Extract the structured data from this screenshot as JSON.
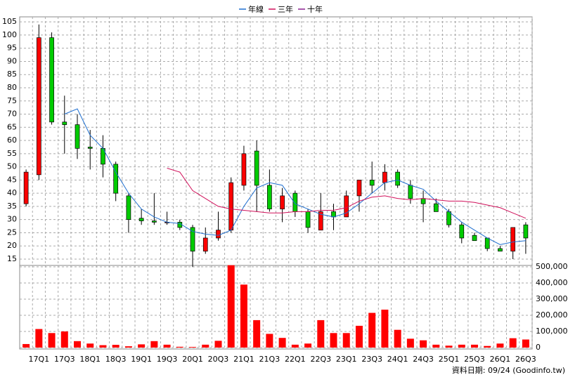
{
  "chart_data": {
    "type": "candlestick",
    "categories": [
      null,
      "17Q1",
      null,
      "17Q3",
      null,
      "18Q1",
      null,
      "18Q3",
      null,
      "19Q1",
      null,
      "19Q3",
      null,
      "20Q1",
      null,
      "20Q3",
      null,
      "21Q1",
      null,
      "21Q3",
      null,
      "22Q1",
      null,
      "22Q3",
      null,
      "23Q1",
      null,
      "23Q3",
      null,
      "24Q1",
      null,
      "24Q3",
      null,
      "25Q1",
      null,
      "25Q3",
      null,
      "26Q1",
      null,
      "26Q3"
    ],
    "open": [
      36,
      47,
      99,
      67,
      66,
      57.5,
      57,
      51,
      39,
      30.5,
      29.5,
      29,
      29,
      27,
      18,
      23,
      26,
      43,
      56,
      43,
      34,
      40,
      33,
      26,
      33,
      31,
      39,
      45,
      44,
      48,
      43,
      38,
      36,
      33,
      28,
      24,
      23,
      19,
      18,
      28
    ],
    "high": [
      49,
      104,
      101,
      77,
      70,
      64,
      62,
      52,
      40,
      34,
      40,
      33,
      30,
      28,
      27,
      33,
      46,
      58,
      60,
      49,
      42,
      41,
      34,
      40,
      36,
      41,
      45,
      52,
      51,
      49,
      45,
      41,
      38,
      34,
      29,
      25,
      23,
      20,
      27,
      29
    ],
    "low": [
      35,
      45,
      66,
      55,
      53,
      49,
      46,
      37,
      25,
      28,
      28,
      28,
      26,
      12,
      17,
      22,
      25,
      41,
      33,
      33,
      29,
      31,
      25,
      26,
      26,
      31,
      33,
      40,
      41,
      42,
      36,
      29,
      33,
      27,
      21,
      22,
      18,
      18,
      15,
      17
    ],
    "close": [
      48,
      99,
      67,
      66,
      57,
      57,
      51,
      40,
      30,
      29.5,
      29,
      29,
      27,
      18,
      23,
      26,
      44,
      55,
      43,
      34,
      39,
      33,
      27,
      33,
      31,
      39,
      45,
      43,
      48,
      43,
      38,
      36,
      33,
      28,
      23,
      22,
      19,
      18,
      27,
      23
    ],
    "up_color": "#ff0000",
    "down_color": "#00cc00",
    "series": [
      {
        "name": "年線",
        "color": "#1f6fd0",
        "values": [
          null,
          null,
          null,
          70,
          72,
          62,
          57,
          48,
          40,
          34,
          31,
          29,
          28.5,
          25.5,
          24.5,
          24,
          26,
          35,
          42,
          44,
          43,
          36,
          34,
          32,
          31,
          32.5,
          36,
          40,
          44,
          45,
          43,
          41.5,
          37,
          33,
          29,
          26,
          23,
          20.5,
          21.5,
          22
        ]
      },
      {
        "name": "三年",
        "color": "#d0105a",
        "values": [
          null,
          null,
          null,
          null,
          null,
          null,
          null,
          null,
          null,
          null,
          null,
          49.5,
          48,
          41,
          38,
          35,
          34,
          33.5,
          33,
          32.5,
          32.5,
          33,
          33,
          33.5,
          33.5,
          34.5,
          37,
          38.5,
          39,
          38,
          37.5,
          38,
          37.5,
          37,
          37,
          36.5,
          35.5,
          34.5,
          32.5,
          30.5
        ]
      },
      {
        "name": "十年",
        "color": "#8a2090",
        "values": [
          null,
          null,
          null,
          null,
          null,
          null,
          null,
          null,
          null,
          null,
          null,
          null,
          null,
          null,
          null,
          null,
          null,
          null,
          null,
          null,
          null,
          null,
          null,
          null,
          null,
          null,
          null,
          null,
          null,
          null,
          null,
          null,
          null,
          null,
          null,
          null,
          null,
          null,
          null,
          null
        ]
      }
    ],
    "ylim": [
      12.6,
      106.9
    ],
    "yticks": [
      15,
      20,
      25,
      30,
      35,
      40,
      45,
      50,
      55,
      60,
      65,
      70,
      75,
      80,
      85,
      90,
      95,
      100,
      105
    ],
    "volume": {
      "color": "#ff0000",
      "values": [
        22000,
        115000,
        90000,
        100000,
        40000,
        25000,
        15000,
        17000,
        8000,
        20000,
        40000,
        18000,
        5000,
        4000,
        18000,
        42000,
        510000,
        390000,
        170000,
        85000,
        60000,
        18000,
        25000,
        170000,
        90000,
        90000,
        135000,
        215000,
        235000,
        110000,
        55000,
        45000,
        18000,
        12000,
        18000,
        18000,
        10000,
        25000,
        58000,
        50000
      ],
      "ylim": [
        0,
        500000
      ],
      "yticks": [
        0,
        {
          "value": 100000,
          "label": "100,000"
        },
        {
          "value": 200000,
          "label": "200,000"
        },
        {
          "value": 300000,
          "label": "300,000"
        },
        {
          "value": 400000,
          "label": "400,000"
        },
        {
          "value": 500000,
          "label": "500,000"
        }
      ]
    },
    "grid": true,
    "footer": "資料日期: 09/24 (Goodinfo.tw)"
  }
}
